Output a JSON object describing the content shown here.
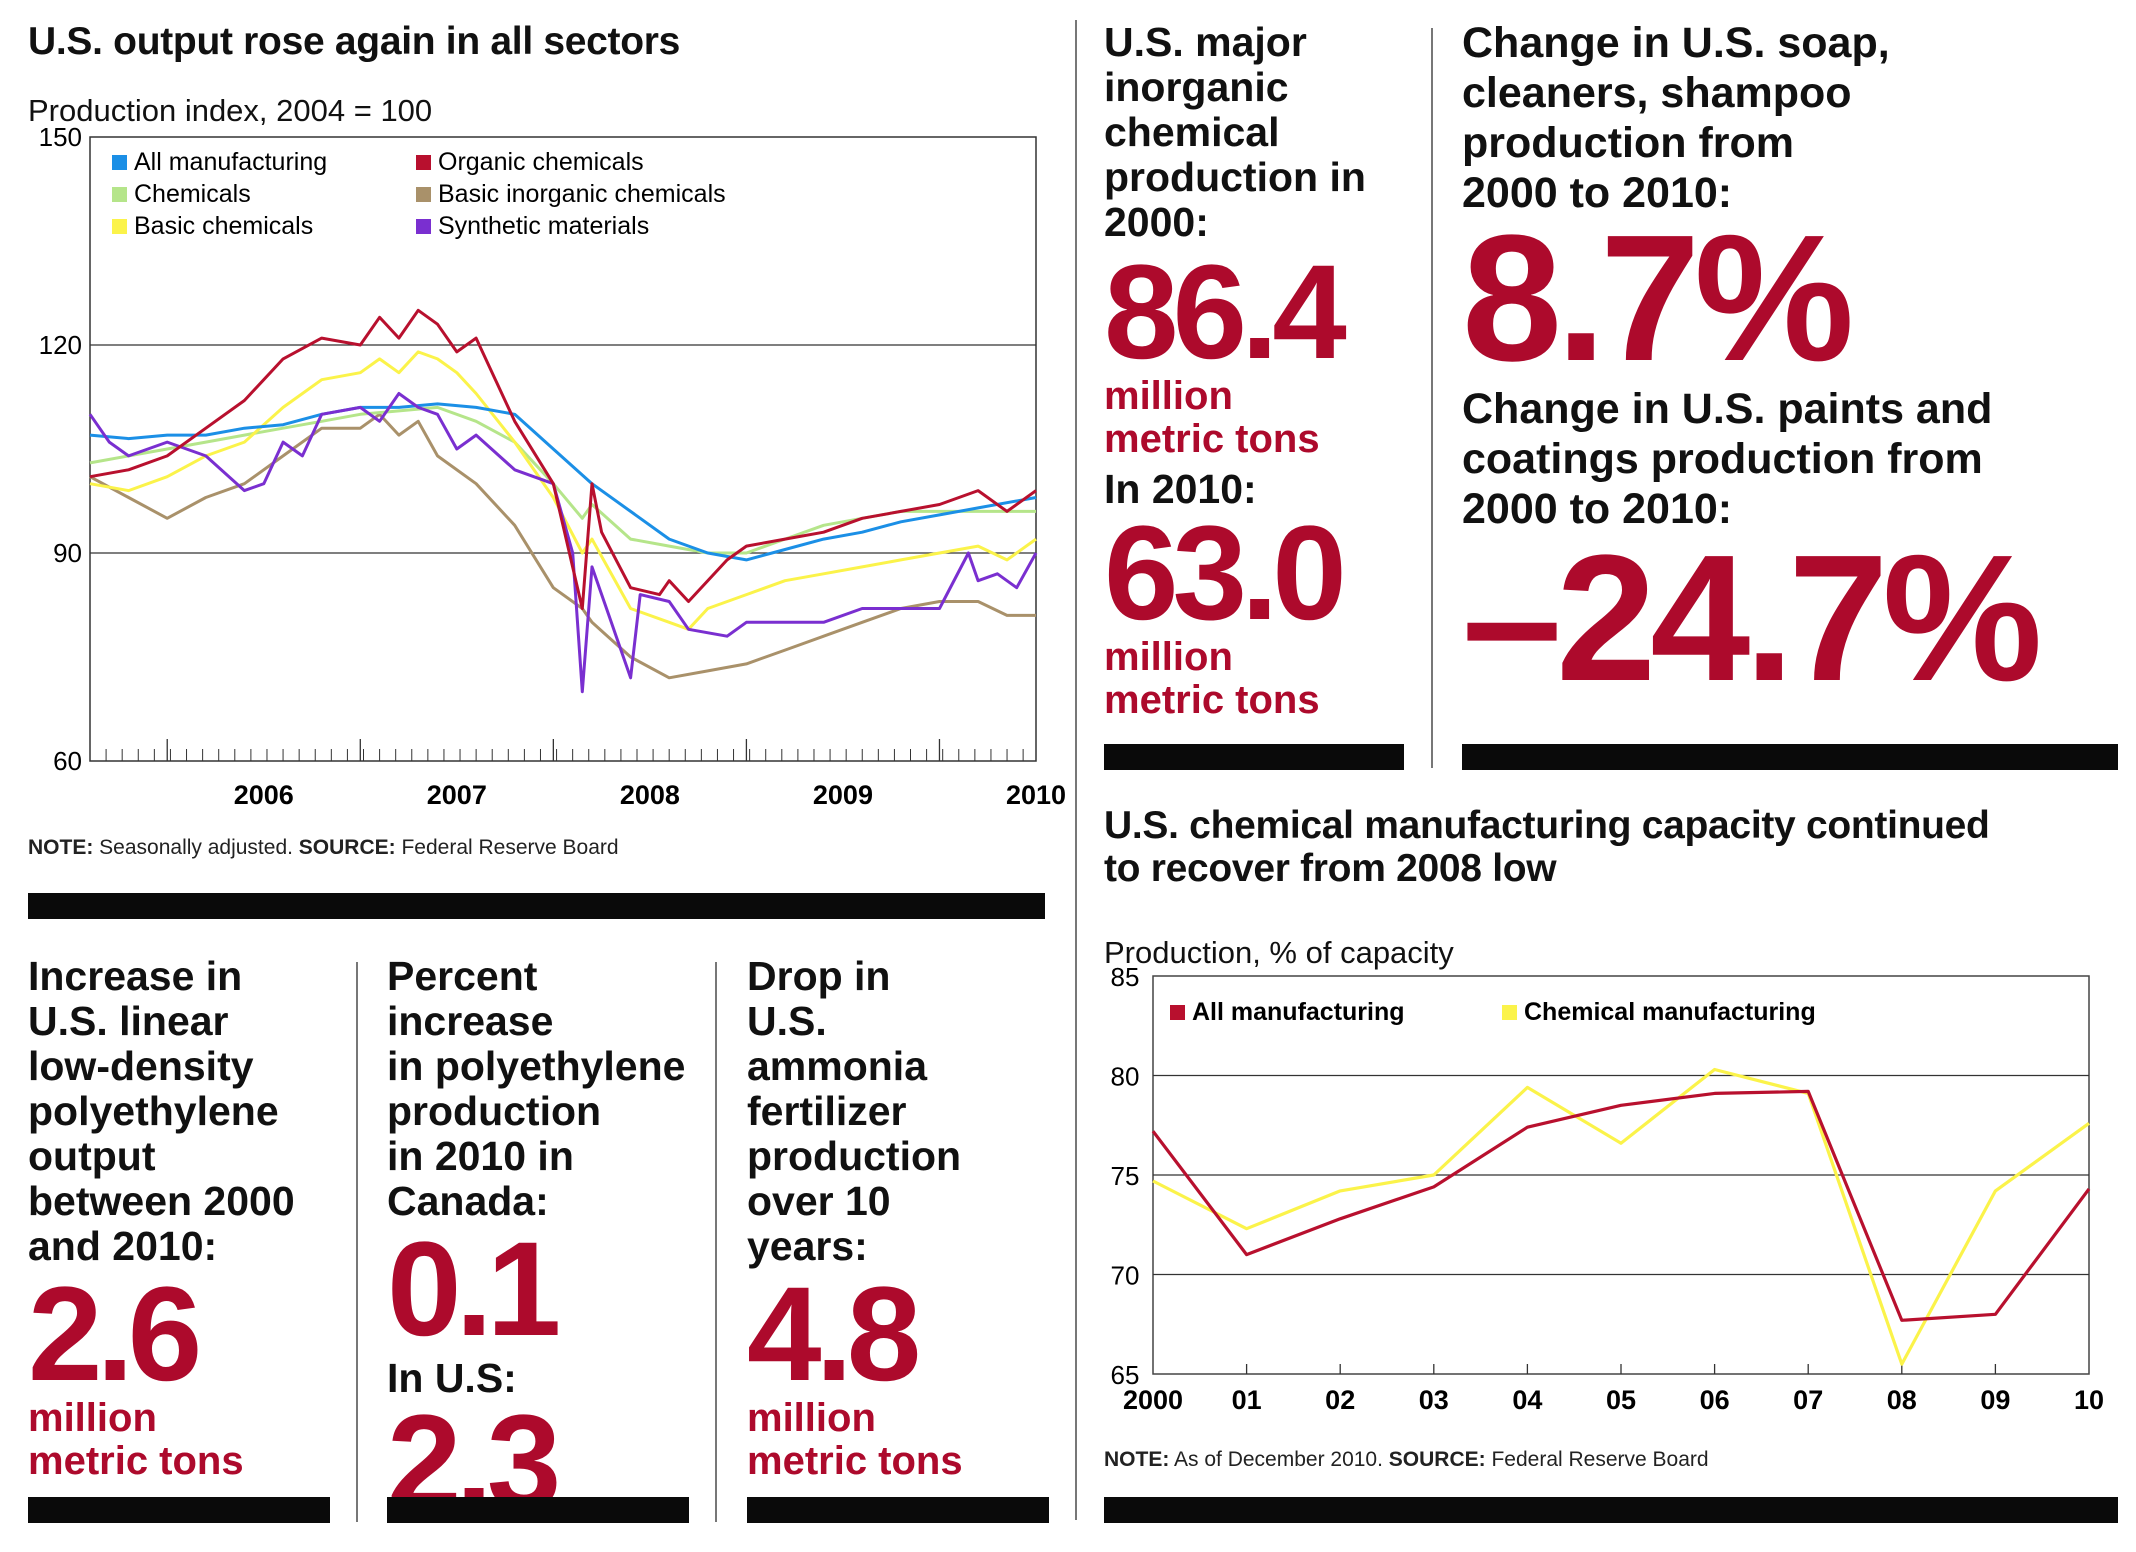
{
  "chart1": {
    "title": "U.S. output rose again in all sectors",
    "subtitle": "Production index, 2004 = 100",
    "note_label": "NOTE:",
    "note_text": " Seasonally adjusted. ",
    "source_label": "SOURCE:",
    "source_text": " Federal Reserve Board"
  },
  "chart2": {
    "title_line1": "U.S. chemical manufacturing capacity continued",
    "title_line2": "to recover from 2008 low",
    "subtitle": "Production, % of capacity",
    "note_label": "NOTE:",
    "note_text": " As of December 2010. ",
    "source_label": "SOURCE:",
    "source_text": " Federal Reserve Board"
  },
  "stats": {
    "inorganic": {
      "question": [
        "U.S. major",
        "inorganic",
        "chemical",
        "production in",
        "2000:"
      ],
      "value_2000": "86.4",
      "unit_2000": [
        "million",
        "metric tons"
      ],
      "label_2010": "In 2010:",
      "value_2010": "63.0",
      "unit_2010": [
        "million",
        "metric tons"
      ]
    },
    "soap": {
      "question": [
        "Change in U.S. soap,",
        "cleaners, shampoo",
        "production from",
        "2000 to 2010:"
      ],
      "value": "8.7%"
    },
    "paints": {
      "question": [
        "Change in U.S. paints and",
        "coatings production from",
        "2000 to 2010:"
      ],
      "value": "–24.7%"
    },
    "lldpe": {
      "question": [
        "Increase in",
        "U.S. linear",
        "low-density",
        "polyethylene",
        "output",
        "between 2000",
        "and 2010:"
      ],
      "value": "2.6",
      "unit": [
        "million",
        "metric tons"
      ]
    },
    "canada": {
      "question": [
        "Percent increase",
        "in polyethylene",
        "production",
        "in 2010 in",
        "Canada:"
      ],
      "value": "0.1",
      "label_us": "In U.S:",
      "value_us": "2.3"
    },
    "ammonia": {
      "question": [
        "Drop in",
        "U.S.",
        "ammonia",
        "fertilizer",
        "production",
        "over 10",
        "years:"
      ],
      "value": "4.8",
      "unit": [
        "million",
        "metric tons"
      ]
    }
  },
  "chart_data": [
    {
      "type": "line",
      "ylim": [
        60,
        150
      ],
      "yticks": [
        "60",
        "90",
        "120",
        "150"
      ],
      "x_labels": [
        "2006",
        "2007",
        "2008",
        "2009",
        "2010"
      ],
      "x_range": [
        2005.6,
        2010.5
      ],
      "grid": "horizontal at 90 and 120",
      "legend": "top-left",
      "series": [
        {
          "name": "All manufacturing",
          "color": "#1b8fe6",
          "x": [
            2005.6,
            2005.8,
            2006.0,
            2006.2,
            2006.4,
            2006.6,
            2006.8,
            2007.0,
            2007.2,
            2007.4,
            2007.6,
            2007.8,
            2008.0,
            2008.2,
            2008.4,
            2008.6,
            2008.8,
            2009.0,
            2009.2,
            2009.4,
            2009.6,
            2009.8,
            2010.0,
            2010.2,
            2010.5
          ],
          "y": [
            107,
            106.5,
            107,
            107,
            108,
            108.5,
            110,
            111,
            111,
            111.5,
            111,
            110,
            105,
            100,
            96,
            92,
            90,
            89,
            90.5,
            92,
            93,
            94.5,
            95.5,
            96.5,
            98
          ]
        },
        {
          "name": "Organic chemicals",
          "color": "#b8102e",
          "x": [
            2005.6,
            2005.8,
            2006.0,
            2006.2,
            2006.4,
            2006.6,
            2006.8,
            2007.0,
            2007.1,
            2007.2,
            2007.3,
            2007.4,
            2007.5,
            2007.6,
            2007.7,
            2007.8,
            2008.0,
            2008.15,
            2008.2,
            2008.25,
            2008.4,
            2008.55,
            2008.6,
            2008.7,
            2008.9,
            2009.0,
            2009.2,
            2009.4,
            2009.6,
            2009.8,
            2010.0,
            2010.2,
            2010.35,
            2010.5
          ],
          "y": [
            101,
            102,
            104,
            108,
            112,
            118,
            121,
            120,
            124,
            121,
            125,
            123,
            119,
            121,
            115,
            109,
            100,
            82,
            100,
            93,
            85,
            84,
            86,
            83,
            89,
            91,
            92,
            93,
            95,
            96,
            97,
            99,
            96,
            99
          ]
        },
        {
          "name": "Chemicals",
          "color": "#b5e58a",
          "x": [
            2005.6,
            2005.8,
            2006.0,
            2006.2,
            2006.4,
            2006.6,
            2006.8,
            2007.0,
            2007.2,
            2007.4,
            2007.6,
            2007.8,
            2008.0,
            2008.15,
            2008.2,
            2008.4,
            2008.6,
            2008.8,
            2009.0,
            2009.2,
            2009.4,
            2009.6,
            2009.8,
            2010.0,
            2010.2,
            2010.5
          ],
          "y": [
            103,
            104,
            105,
            106,
            107,
            108,
            109,
            110,
            110.5,
            111,
            109,
            106,
            100,
            95,
            97,
            92,
            91,
            90,
            90,
            92,
            94,
            95,
            96,
            96,
            96,
            96
          ]
        },
        {
          "name": "Basic inorganic chemicals",
          "color": "#a9916a",
          "x": [
            2005.6,
            2005.8,
            2006.0,
            2006.2,
            2006.4,
            2006.6,
            2006.8,
            2007.0,
            2007.1,
            2007.2,
            2007.3,
            2007.4,
            2007.6,
            2007.8,
            2008.0,
            2008.15,
            2008.2,
            2008.4,
            2008.6,
            2008.8,
            2009.0,
            2009.2,
            2009.4,
            2009.6,
            2009.8,
            2010.0,
            2010.2,
            2010.35,
            2010.5
          ],
          "y": [
            101,
            98,
            95,
            98,
            100,
            104,
            108,
            108,
            110,
            107,
            109,
            104,
            100,
            94,
            85,
            82,
            80,
            75,
            72,
            73,
            74,
            76,
            78,
            80,
            82,
            83,
            83,
            81,
            81
          ]
        },
        {
          "name": "Basic chemicals",
          "color": "#fbf34a",
          "x": [
            2005.6,
            2005.8,
            2006.0,
            2006.2,
            2006.4,
            2006.6,
            2006.8,
            2007.0,
            2007.1,
            2007.2,
            2007.3,
            2007.4,
            2007.5,
            2007.6,
            2007.8,
            2008.0,
            2008.15,
            2008.2,
            2008.4,
            2008.6,
            2008.7,
            2008.8,
            2009.0,
            2009.2,
            2009.4,
            2009.6,
            2009.8,
            2010.0,
            2010.2,
            2010.35,
            2010.5
          ],
          "y": [
            100,
            99,
            101,
            104,
            106,
            111,
            115,
            116,
            118,
            116,
            119,
            118,
            116,
            113,
            106,
            98,
            90,
            92,
            82,
            80,
            79,
            82,
            84,
            86,
            87,
            88,
            89,
            90,
            91,
            89,
            92
          ]
        },
        {
          "name": "Synthetic materials",
          "color": "#7a2fd0",
          "x": [
            2005.6,
            2005.7,
            2005.8,
            2006.0,
            2006.2,
            2006.4,
            2006.5,
            2006.6,
            2006.7,
            2006.8,
            2007.0,
            2007.1,
            2007.2,
            2007.3,
            2007.4,
            2007.5,
            2007.6,
            2007.8,
            2008.0,
            2008.1,
            2008.15,
            2008.2,
            2008.3,
            2008.4,
            2008.45,
            2008.6,
            2008.7,
            2008.9,
            2009.0,
            2009.2,
            2009.4,
            2009.6,
            2009.8,
            2010.0,
            2010.15,
            2010.2,
            2010.3,
            2010.4,
            2010.5
          ],
          "y": [
            110,
            106,
            104,
            106,
            104,
            99,
            100,
            106,
            104,
            110,
            111,
            109,
            113,
            111,
            110,
            105,
            107,
            102,
            100,
            90,
            70,
            88,
            80,
            72,
            84,
            83,
            79,
            78,
            80,
            80,
            80,
            82,
            82,
            82,
            90,
            86,
            87,
            85,
            90
          ]
        }
      ]
    },
    {
      "type": "line",
      "ylim": [
        65,
        85
      ],
      "yticks": [
        "65",
        "70",
        "75",
        "80",
        "85"
      ],
      "categories": [
        "2000",
        "01",
        "02",
        "03",
        "04",
        "05",
        "06",
        "07",
        "08",
        "09",
        "10"
      ],
      "grid": "horizontal",
      "legend": "top-left",
      "series": [
        {
          "name": "All manufacturing",
          "color": "#b8102e",
          "values": [
            77.2,
            71.0,
            72.8,
            74.4,
            77.4,
            78.5,
            79.1,
            79.2,
            67.7,
            68.0,
            74.3
          ]
        },
        {
          "name": "Chemical manufacturing",
          "color": "#fbf34a",
          "values": [
            74.7,
            72.3,
            74.2,
            75.0,
            79.4,
            76.6,
            80.3,
            79.1,
            65.5,
            74.2,
            77.6
          ]
        }
      ]
    }
  ]
}
